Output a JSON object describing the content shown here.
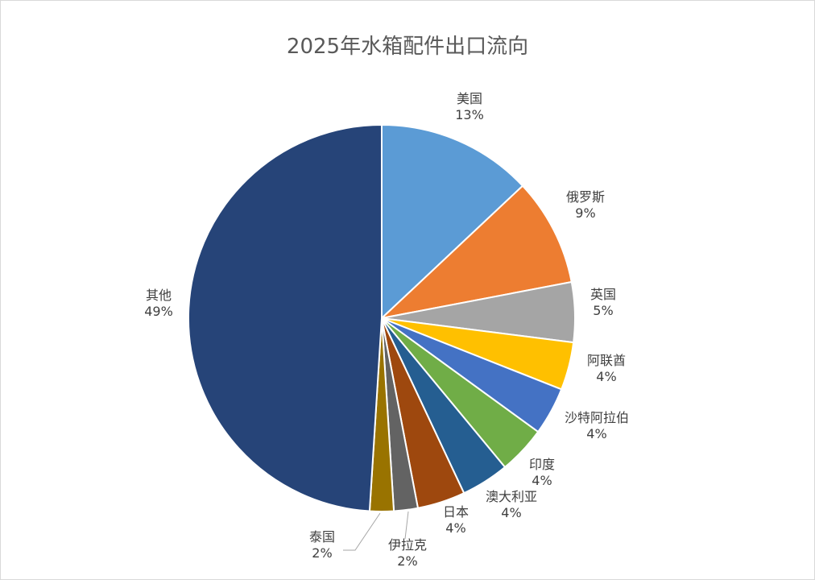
{
  "chart_data": {
    "type": "pie",
    "title": "2025年水箱配件出口流向",
    "slices": [
      {
        "name": "美国",
        "value": 13,
        "label": "13%",
        "color": "#5b9bd5"
      },
      {
        "name": "俄罗斯",
        "value": 9,
        "label": "9%",
        "color": "#ed7d31"
      },
      {
        "name": "英国",
        "value": 5,
        "label": "5%",
        "color": "#a5a5a5"
      },
      {
        "name": "阿联酋",
        "value": 4,
        "label": "4%",
        "color": "#ffc000"
      },
      {
        "name": "沙特阿拉伯",
        "value": 4,
        "label": "4%",
        "color": "#4472c4"
      },
      {
        "name": "印度",
        "value": 4,
        "label": "4%",
        "color": "#70ad47"
      },
      {
        "name": "澳大利亚",
        "value": 4,
        "label": "4%",
        "color": "#255e91"
      },
      {
        "name": "日本",
        "value": 4,
        "label": "4%",
        "color": "#9e480e"
      },
      {
        "name": "伊拉克",
        "value": 2,
        "label": "2%",
        "color": "#636363"
      },
      {
        "name": "泰国",
        "value": 2,
        "label": "2%",
        "color": "#997300"
      },
      {
        "name": "其他",
        "value": 49,
        "label": "49%",
        "color": "#264478"
      }
    ]
  }
}
